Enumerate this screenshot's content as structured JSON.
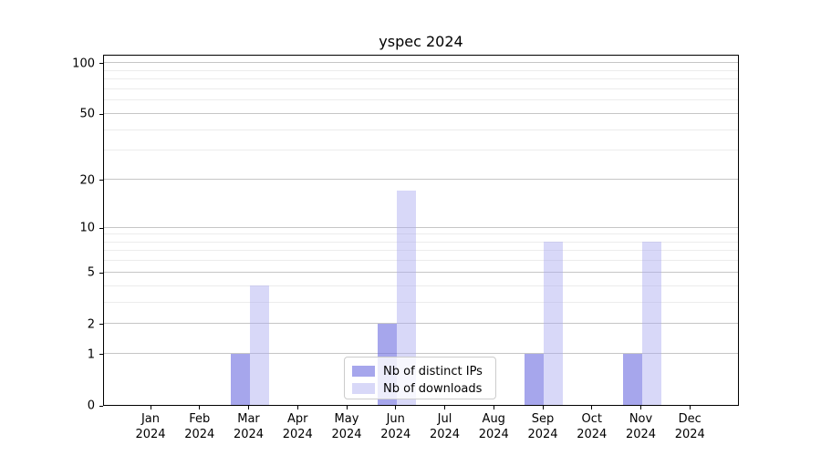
{
  "chart_data": {
    "type": "bar",
    "title": "yspec 2024",
    "categories": [
      "Jan\n2024",
      "Feb\n2024",
      "Mar\n2024",
      "Apr\n2024",
      "May\n2024",
      "Jun\n2024",
      "Jul\n2024",
      "Aug\n2024",
      "Sep\n2024",
      "Oct\n2024",
      "Nov\n2024",
      "Dec\n2024"
    ],
    "series": [
      {
        "name": "Nb of distinct IPs",
        "color": "rgba(112,112,224,0.62)",
        "values": [
          0,
          0,
          1,
          0,
          0,
          2,
          0,
          0,
          1,
          0,
          1,
          0
        ]
      },
      {
        "name": "Nb of downloads",
        "color": "rgba(168,168,240,0.45)",
        "values": [
          0,
          0,
          4,
          0,
          0,
          17,
          0,
          0,
          8,
          0,
          8,
          0
        ]
      }
    ],
    "y_axis": {
      "scale": "log1p",
      "ticks": [
        0,
        1,
        2,
        5,
        10,
        20,
        50,
        100
      ],
      "minor_gridlines": [
        3,
        4,
        6,
        7,
        8,
        9,
        30,
        40,
        60,
        70,
        80,
        90
      ],
      "display_max": 113
    },
    "legend_position": "lower center",
    "grid": true
  },
  "colors": {
    "major_grid": "#c6c6c6",
    "minor_grid": "#ececec",
    "spine": "#000000",
    "background": "#ffffff"
  }
}
